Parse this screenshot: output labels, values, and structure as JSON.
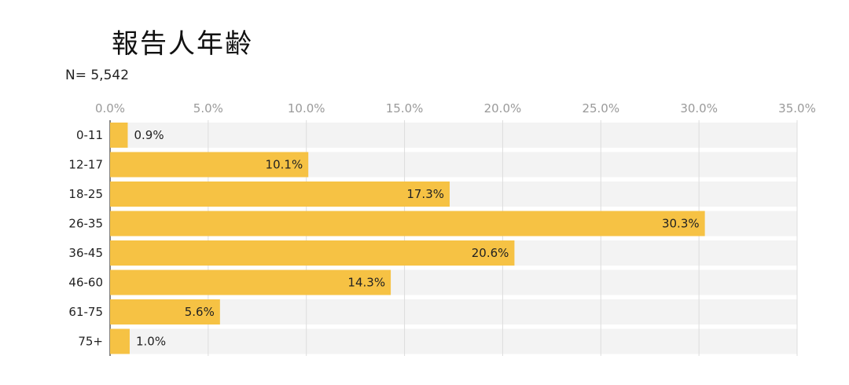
{
  "chart_data": {
    "type": "bar",
    "orientation": "horizontal",
    "title": "報告人年齢",
    "subtitle": "N= 5,542",
    "xlabel": "",
    "ylabel": "",
    "categories": [
      "0-11",
      "12-17",
      "18-25",
      "26-35",
      "36-45",
      "46-60",
      "61-75",
      "75+"
    ],
    "values": [
      0.9,
      10.1,
      17.3,
      30.3,
      20.6,
      14.3,
      5.6,
      1.0
    ],
    "value_labels": [
      "0.9%",
      "10.1%",
      "17.3%",
      "30.3%",
      "20.6%",
      "14.3%",
      "5.6%",
      "1.0%"
    ],
    "xlim": [
      0,
      35
    ],
    "ticks": [
      0,
      5,
      10,
      15,
      20,
      25,
      30,
      35
    ],
    "tick_labels": [
      "0.0%",
      "5.0%",
      "10.0%",
      "15.0%",
      "20.0%",
      "25.0%",
      "30.0%",
      "35.0%"
    ],
    "axis_position": "top",
    "grid": true,
    "legend": false,
    "colors": {
      "bar": "#F6C244",
      "band": "#F3F3F3",
      "grid": "#DDDDDD"
    }
  }
}
